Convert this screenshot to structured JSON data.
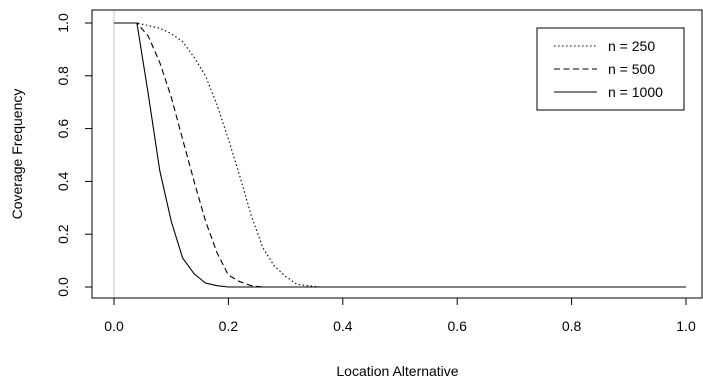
{
  "chart_data": {
    "type": "line",
    "title": "",
    "xlabel": "Location Alternative",
    "ylabel": "Coverage Frequency",
    "xlim": [
      -0.04,
      1.04
    ],
    "ylim": [
      -0.03,
      1.03
    ],
    "xticks": [
      "0.0",
      "0.2",
      "0.4",
      "0.6",
      "0.8",
      "1.0"
    ],
    "yticks": [
      "0.0",
      "0.2",
      "0.4",
      "0.6",
      "0.8",
      "1.0"
    ],
    "grid": false,
    "reference_line_x": 0.0,
    "legend": {
      "placement": "top-right"
    },
    "series": [
      {
        "name": "n = 250",
        "line_style": "dotted",
        "x": [
          0.0,
          0.04,
          0.06,
          0.08,
          0.1,
          0.12,
          0.14,
          0.16,
          0.18,
          0.2,
          0.22,
          0.24,
          0.26,
          0.28,
          0.3,
          0.32,
          0.34,
          0.36,
          0.4,
          1.0
        ],
        "y": [
          1.0,
          1.0,
          0.99,
          0.98,
          0.96,
          0.93,
          0.87,
          0.8,
          0.69,
          0.56,
          0.42,
          0.27,
          0.15,
          0.08,
          0.04,
          0.01,
          0.005,
          0.0,
          0.0,
          0.0
        ]
      },
      {
        "name": "n = 500",
        "line_style": "dashed",
        "x": [
          0.0,
          0.04,
          0.06,
          0.08,
          0.1,
          0.12,
          0.14,
          0.16,
          0.18,
          0.2,
          0.22,
          0.24,
          0.26,
          0.28,
          0.3,
          1.0
        ],
        "y": [
          1.0,
          1.0,
          0.95,
          0.85,
          0.72,
          0.56,
          0.4,
          0.25,
          0.13,
          0.045,
          0.02,
          0.005,
          0.0,
          0.0,
          0.0,
          0.0
        ]
      },
      {
        "name": "n = 1000",
        "line_style": "solid",
        "x": [
          0.0,
          0.04,
          0.06,
          0.08,
          0.1,
          0.12,
          0.14,
          0.16,
          0.18,
          0.2,
          0.22,
          1.0
        ],
        "y": [
          1.0,
          1.0,
          0.73,
          0.44,
          0.25,
          0.11,
          0.05,
          0.015,
          0.005,
          0.0,
          0.0,
          0.0
        ]
      }
    ]
  }
}
